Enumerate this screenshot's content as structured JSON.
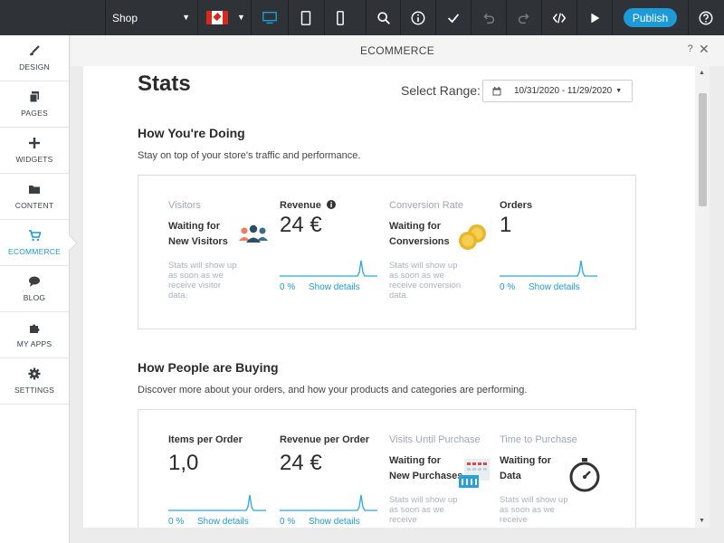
{
  "topbar": {
    "page_select": "Shop",
    "publish_label": "Publish",
    "icons": [
      "desktop-icon",
      "tablet-icon",
      "mobile-icon",
      "search-icon",
      "info-icon",
      "check-icon",
      "undo-icon",
      "redo-icon",
      "code-icon",
      "play-icon",
      "help-icon"
    ]
  },
  "sidebar": {
    "items": [
      {
        "label": "DESIGN",
        "icon": "brush-icon"
      },
      {
        "label": "PAGES",
        "icon": "pages-icon"
      },
      {
        "label": "WIDGETS",
        "icon": "plus-icon"
      },
      {
        "label": "CONTENT",
        "icon": "folder-icon"
      },
      {
        "label": "ECOMMERCE",
        "icon": "cart-icon",
        "active": true
      },
      {
        "label": "BLOG",
        "icon": "chat-icon"
      },
      {
        "label": "MY APPS",
        "icon": "puzzle-icon"
      },
      {
        "label": "SETTINGS",
        "icon": "gear-icon"
      }
    ]
  },
  "panel": {
    "title": "ECOMMERCE",
    "help": "?",
    "close": "✕"
  },
  "stats": {
    "title": "Stats",
    "range_label": "Select Range:",
    "range_value": "10/31/2020 - 11/29/2020"
  },
  "doing": {
    "title": "How You're Doing",
    "subtitle": "Stay on top of your store's traffic and performance.",
    "visitors": {
      "heading": "Visitors",
      "waiting1": "Waiting for",
      "waiting2": "New Visitors",
      "note": "Stats will show up as soon as we receive visitor data."
    },
    "revenue": {
      "heading": "Revenue",
      "value": "24 €",
      "pct": "0 %",
      "link": "Show details"
    },
    "conversion": {
      "heading": "Conversion Rate",
      "waiting1": "Waiting for",
      "waiting2": "Conversions",
      "note": "Stats will show up as soon as we receive conversion data."
    },
    "orders": {
      "heading": "Orders",
      "value": "1",
      "pct": "0 %",
      "link": "Show details"
    }
  },
  "buying": {
    "title": "How People are Buying",
    "subtitle": "Discover more about your orders, and how your products and categories are performing.",
    "items_per_order": {
      "heading": "Items per Order",
      "value": "1,0",
      "pct": "0 %",
      "link": "Show details"
    },
    "revenue_per_order": {
      "heading": "Revenue per Order",
      "value": "24 €",
      "pct": "0 %",
      "link": "Show details"
    },
    "visits_until_purchase": {
      "heading": "Visits Until Purchase",
      "waiting1": "Waiting for",
      "waiting2": "New Purchases",
      "note": "Stats will show up as soon as we receive"
    },
    "time_to_purchase": {
      "heading": "Time to Purchase",
      "waiting1": "Waiting for",
      "waiting2": "Data",
      "note": "Stats will show up as soon as we receive"
    }
  },
  "colors": {
    "accent": "#1e9ad6",
    "topbar": "#2f3337",
    "muted": "#9ea7b3"
  }
}
